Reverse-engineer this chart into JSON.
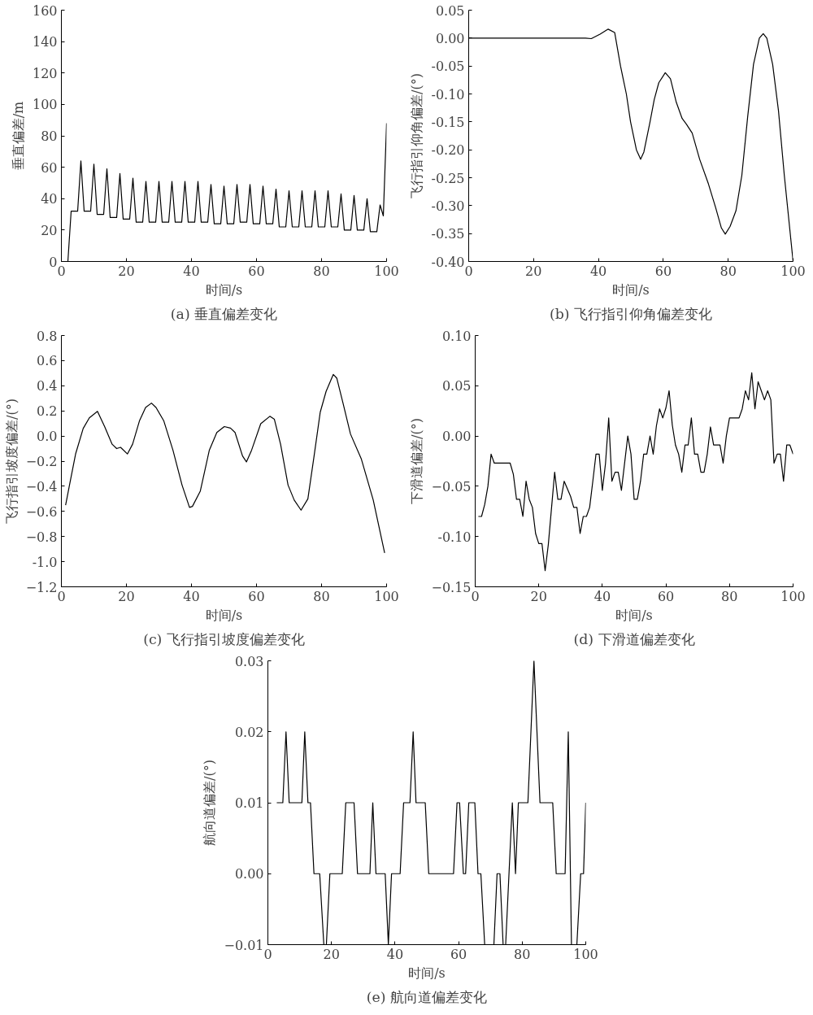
{
  "chart_data": [
    {
      "type": "line",
      "title": "(a) 垂直偏差变化",
      "xlabel": "时间/s",
      "ylabel": "垂直偏差/m",
      "xlim": [
        0,
        100
      ],
      "xticks": [
        0,
        20,
        40,
        60,
        80,
        100
      ],
      "ylim": [
        0,
        160
      ],
      "yticks": [
        0,
        20,
        40,
        60,
        80,
        100,
        120,
        140,
        160
      ],
      "series": [
        {
          "color": "#000000",
          "x": [
            2,
            3,
            5,
            6,
            7,
            9,
            10,
            11,
            13,
            14,
            15,
            17,
            18,
            19,
            21,
            22,
            23,
            25,
            26,
            27,
            29,
            30,
            31,
            33,
            34,
            35,
            37,
            38,
            39,
            41,
            42,
            43,
            45,
            46,
            47,
            49,
            50,
            51,
            53,
            54,
            55,
            57,
            58,
            59,
            61,
            62,
            63,
            65,
            66,
            67,
            69,
            70,
            71,
            73,
            74,
            75,
            77,
            78,
            79,
            81,
            82,
            83,
            85,
            86,
            87,
            89,
            90,
            91,
            93,
            94,
            95,
            97,
            98,
            99,
            100
          ],
          "values": [
            0,
            32,
            32,
            64,
            32,
            32,
            62,
            30,
            30,
            59,
            28,
            28,
            56,
            27,
            27,
            53,
            25,
            25,
            51,
            25,
            25,
            51,
            25,
            25,
            51,
            25,
            25,
            51,
            25,
            25,
            51,
            25,
            25,
            49,
            24,
            24,
            48,
            24,
            24,
            49,
            25,
            25,
            49,
            24,
            24,
            48,
            24,
            24,
            46,
            22,
            22,
            45,
            22,
            22,
            45,
            22,
            22,
            45,
            22,
            22,
            45,
            22,
            22,
            43,
            20,
            20,
            42,
            20,
            20,
            40,
            19,
            19,
            36,
            29,
            88
          ]
        }
      ]
    },
    {
      "type": "line",
      "title": "(b) 飞行指引仰角偏差变化",
      "xlabel": "时间/s",
      "ylabel": "飞行指引仰角偏差/(°)",
      "xlim": [
        0,
        100
      ],
      "xticks": [
        0,
        20,
        40,
        60,
        80,
        100
      ],
      "ylim": [
        -0.4,
        0.05
      ],
      "yticks": [
        {
          "value": 0.05,
          "label": "0.05"
        },
        {
          "value": 0,
          "label": "0.00"
        },
        {
          "value": -0.05,
          "label": "-0.05"
        },
        {
          "value": -0.1,
          "label": "-0.10"
        },
        {
          "value": -0.15,
          "label": "-0.15"
        },
        {
          "value": -0.2,
          "label": "-0.20"
        },
        {
          "value": -0.25,
          "label": "-0.25"
        },
        {
          "value": -0.3,
          "label": "-0.30"
        },
        {
          "value": -0.35,
          "label": "-0.35"
        },
        {
          "value": -0.4,
          "label": "-0.40"
        }
      ],
      "series": [
        {
          "color": "#000000",
          "x": [
            0,
            36,
            37.8,
            40.5,
            43,
            45,
            46.8,
            47.7,
            48.6,
            49.9,
            51.7,
            53,
            54,
            55.9,
            57.2,
            58.6,
            60.6,
            62.2,
            64,
            65.8,
            67.1,
            68.9,
            71.2,
            73.9,
            76.1,
            77.9,
            79.1,
            80.6,
            82.4,
            84.2,
            86,
            87.8,
            89.6,
            90.8,
            91.9,
            93.7,
            95.5,
            97.3,
            100
          ],
          "values": [
            0,
            0,
            -0.001,
            0.007,
            0.016,
            0.01,
            -0.05,
            -0.075,
            -0.1,
            -0.15,
            -0.2,
            -0.217,
            -0.204,
            -0.15,
            -0.11,
            -0.08,
            -0.062,
            -0.073,
            -0.115,
            -0.144,
            -0.154,
            -0.17,
            -0.217,
            -0.261,
            -0.303,
            -0.34,
            -0.351,
            -0.337,
            -0.309,
            -0.246,
            -0.141,
            -0.047,
            0,
            0.008,
            0,
            -0.047,
            -0.13,
            -0.246,
            -0.4
          ]
        }
      ]
    },
    {
      "type": "line",
      "title": "(c) 飞行指引坡度偏差变化",
      "xlabel": "时间/s",
      "ylabel": "飞行指引坡度偏差/(°)",
      "xlim": [
        0,
        100
      ],
      "xticks": [
        0,
        20,
        40,
        60,
        80,
        100
      ],
      "ylim": [
        -1.2,
        0.8
      ],
      "yticks": [
        0.8,
        0.6,
        0.4,
        0.2,
        {
          "value": 0,
          "label": "0.0"
        },
        -0.2,
        -0.4,
        -0.6,
        -0.8,
        {
          "value": -1,
          "label": "-1.0"
        },
        -1.2
      ],
      "series": [
        {
          "color": "#000000",
          "x": [
            1.3,
            2.5,
            4.4,
            6.7,
            8.6,
            11.1,
            13.3,
            15.6,
            17,
            18.2,
            20.3,
            21.9,
            24,
            25.9,
            27.7,
            29.1,
            31.5,
            34.3,
            37.1,
            39.4,
            40.3,
            42.7,
            45.5,
            47.8,
            50.1,
            52,
            53.4,
            55.7,
            56.9,
            58.5,
            61.3,
            64.1,
            65.5,
            67.4,
            69.7,
            71.6,
            73.7,
            75.8,
            77.7,
            79.6,
            81.4,
            83.6,
            84.7,
            86.6,
            88.9,
            92.2,
            95.9,
            99.4
          ],
          "values": [
            -0.55,
            -0.39,
            -0.14,
            0.06,
            0.145,
            0.196,
            0.075,
            -0.065,
            -0.1,
            -0.09,
            -0.143,
            -0.065,
            0.12,
            0.227,
            0.262,
            0.227,
            0.12,
            -0.112,
            -0.39,
            -0.568,
            -0.56,
            -0.44,
            -0.112,
            0.028,
            0.075,
            0.063,
            0.028,
            -0.159,
            -0.206,
            -0.112,
            0.098,
            0.157,
            0.133,
            -0.065,
            -0.39,
            -0.51,
            -0.59,
            -0.5,
            -0.16,
            0.19,
            0.355,
            0.49,
            0.46,
            0.262,
            0.016,
            -0.18,
            -0.51,
            -0.93
          ]
        }
      ]
    },
    {
      "type": "line",
      "title": "(d) 下滑道偏差变化",
      "xlabel": "时间/s",
      "ylabel": "下滑道偏差/(°)",
      "xlim": [
        0,
        100
      ],
      "xticks": [
        0,
        20,
        40,
        60,
        80,
        100
      ],
      "ylim": [
        -0.15,
        0.1
      ],
      "yticks": [
        {
          "value": 0.1,
          "label": "0.10"
        },
        0.05,
        {
          "value": 0,
          "label": "0.00"
        },
        -0.05,
        {
          "value": -0.1,
          "label": "-0.10"
        },
        -0.15
      ],
      "series": [
        {
          "color": "#000000",
          "x": [
            1,
            2,
            3,
            4,
            5,
            6,
            11,
            12,
            13,
            14,
            15,
            16,
            17,
            18,
            19,
            20,
            21,
            22,
            23,
            25,
            26,
            27,
            28,
            30,
            31,
            32,
            33,
            34,
            35,
            36,
            37,
            38,
            39,
            40,
            41,
            42,
            43,
            44,
            45,
            46,
            48,
            49,
            50,
            51,
            52,
            53,
            54,
            55,
            56,
            57,
            58,
            59,
            60,
            61,
            62,
            63,
            64,
            65,
            66,
            67,
            68,
            69,
            70,
            71,
            72,
            73,
            74,
            75,
            77,
            78,
            79,
            80,
            83,
            84,
            85,
            86,
            87,
            88,
            89,
            90,
            91,
            92,
            93,
            94,
            95,
            96,
            97,
            98,
            99,
            100
          ],
          "values": [
            -0.08,
            -0.08,
            -0.068,
            -0.05,
            -0.018,
            -0.027,
            -0.027,
            -0.038,
            -0.063,
            -0.063,
            -0.08,
            -0.045,
            -0.063,
            -0.071,
            -0.097,
            -0.107,
            -0.107,
            -0.134,
            -0.108,
            -0.036,
            -0.063,
            -0.063,
            -0.045,
            -0.06,
            -0.071,
            -0.071,
            -0.097,
            -0.08,
            -0.08,
            -0.071,
            -0.045,
            -0.018,
            -0.018,
            -0.054,
            -0.027,
            0.018,
            -0.045,
            -0.036,
            -0.036,
            -0.054,
            0,
            -0.018,
            -0.063,
            -0.063,
            -0.045,
            -0.018,
            -0.018,
            0,
            -0.018,
            0.01,
            0.027,
            0.018,
            0.028,
            0.045,
            0.011,
            -0.009,
            -0.018,
            -0.036,
            -0.009,
            -0.009,
            0.018,
            -0.018,
            -0.018,
            -0.036,
            -0.036,
            -0.018,
            0.009,
            -0.009,
            -0.009,
            -0.027,
            0,
            0.018,
            0.018,
            0.027,
            0.045,
            0.036,
            0.063,
            0.027,
            0.054,
            0.045,
            0.036,
            0.045,
            0.036,
            -0.027,
            -0.018,
            -0.018,
            -0.045,
            -0.009,
            -0.009,
            -0.018
          ]
        }
      ]
    },
    {
      "type": "line",
      "title": "(e) 航向道偏差变化",
      "xlabel": "时间/s",
      "ylabel": "航向道偏差/(°)",
      "xlim": [
        0,
        100
      ],
      "xticks": [
        0,
        20,
        40,
        60,
        80,
        100
      ],
      "ylim": [
        -0.01,
        0.03
      ],
      "yticks": [
        0.03,
        0.02,
        0.01,
        {
          "value": 0,
          "label": "0.00"
        },
        -0.01
      ],
      "series": [
        {
          "color": "#000000",
          "x": [
            2.8,
            4.7,
            5.7,
            6.7,
            10.7,
            11.6,
            12.6,
            13.4,
            14.5,
            16.3,
            17.6,
            18.4,
            19.5,
            23.4,
            24.5,
            27.1,
            28.2,
            32.1,
            33,
            34,
            36.9,
            37.9,
            38.9,
            41.6,
            42.7,
            44.7,
            45.7,
            46.6,
            49.5,
            50.6,
            58.4,
            59.5,
            60.3,
            61.5,
            62.2,
            63.2,
            65.1,
            66.1,
            67,
            68.2,
            71.1,
            72.1,
            73,
            74,
            74.8,
            76.9,
            77.9,
            78.8,
            81.8,
            83.7,
            85.6,
            89.6,
            90.7,
            93.5,
            94.5,
            95.5,
            97.2,
            98.4,
            99.3,
            100
          ],
          "values": [
            0.01,
            0.01,
            0.02,
            0.01,
            0.01,
            0.02,
            0.01,
            0.01,
            0,
            0,
            -0.01,
            -0.01,
            0,
            0,
            0.01,
            0.01,
            0,
            0,
            0.01,
            0,
            0,
            -0.01,
            0,
            0,
            0.01,
            0.01,
            0.02,
            0.01,
            0.01,
            0,
            0,
            0.01,
            0.01,
            0,
            0,
            0.01,
            0.01,
            0,
            0,
            -0.01,
            -0.01,
            0,
            0,
            -0.01,
            -0.01,
            0.01,
            0,
            0.01,
            0.01,
            0.03,
            0.01,
            0.01,
            0,
            0,
            0.02,
            -0.01,
            -0.01,
            0,
            0,
            0.01
          ]
        }
      ]
    }
  ]
}
